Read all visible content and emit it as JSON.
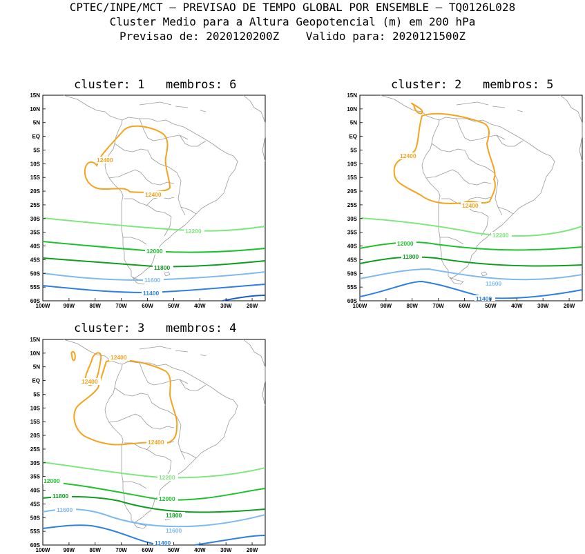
{
  "header": {
    "line1": "CPTEC/INPE/MCT — PREVISAO DE TEMPO GLOBAL POR ENSEMBLE — TQ0126L028",
    "line2": "Cluster Medio para a Altura Geopotencial (m) em 200 hPa",
    "line3": "Previsao de: 2020120200Z    Valido para: 2020121500Z"
  },
  "axes": {
    "lat_labels": [
      "15N",
      "10N",
      "5N",
      "EQ",
      "5S",
      "10S",
      "15S",
      "20S",
      "25S",
      "30S",
      "35S",
      "40S",
      "45S",
      "50S",
      "55S",
      "60S"
    ],
    "lon_labels": [
      "100W",
      "90W",
      "80W",
      "70W",
      "60W",
      "50W",
      "40W",
      "30W",
      "20W"
    ]
  },
  "colors": {
    "c12400": "#f5a31e",
    "c12200": "#7ee87e",
    "c12000": "#1fc12f",
    "c11800": "#0f9d1f",
    "c11600": "#7fb9f0",
    "c11400": "#2f7fe0",
    "c11200": "#1b5fc4",
    "coast": "#999999"
  },
  "panels": [
    {
      "title": "cluster: 1   membros: 6",
      "labels": {
        "l12400a": "12400",
        "l12400b": "12400",
        "l12200": "12200",
        "l12000": "12000",
        "l11800": "11800",
        "l11600": "11600",
        "l11400": "11400"
      }
    },
    {
      "title": "cluster: 2   membros: 5",
      "labels": {
        "l12400a": "12400",
        "l12400b": "12400",
        "l12200": "12200",
        "l12000": "12000",
        "l11800": "11800",
        "l11600": "11600",
        "l11400": "11400"
      }
    },
    {
      "title": "cluster: 3   membros: 4",
      "labels": {
        "l12400a": "12400",
        "l12400b": "12400",
        "l12400c": "12400",
        "l12200": "12200",
        "l12000a": "12000",
        "l12000b": "12000",
        "l11800a": "11800",
        "l11800b": "11800",
        "l11600a": "11600",
        "l11600b": "11600",
        "l11400": "11400"
      }
    }
  ]
}
